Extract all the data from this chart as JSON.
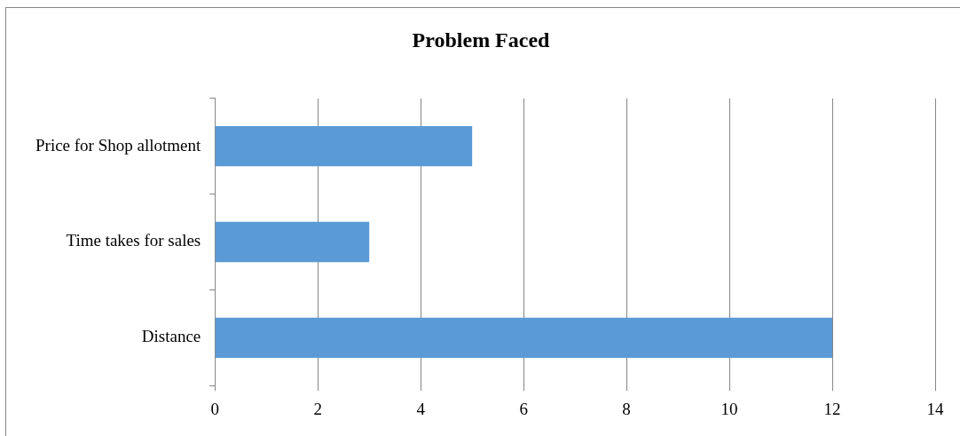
{
  "chart_data": {
    "type": "bar",
    "orientation": "horizontal",
    "title": "Problem Faced",
    "categories": [
      "Price for Shop allotment",
      "Time takes for sales",
      "Distance"
    ],
    "values": [
      5,
      3,
      12
    ],
    "color": "#5b9bd5",
    "xlim": [
      0,
      14
    ],
    "xticks": [
      0,
      2,
      4,
      6,
      8,
      10,
      12,
      14
    ],
    "grid": "x",
    "legend": false
  }
}
